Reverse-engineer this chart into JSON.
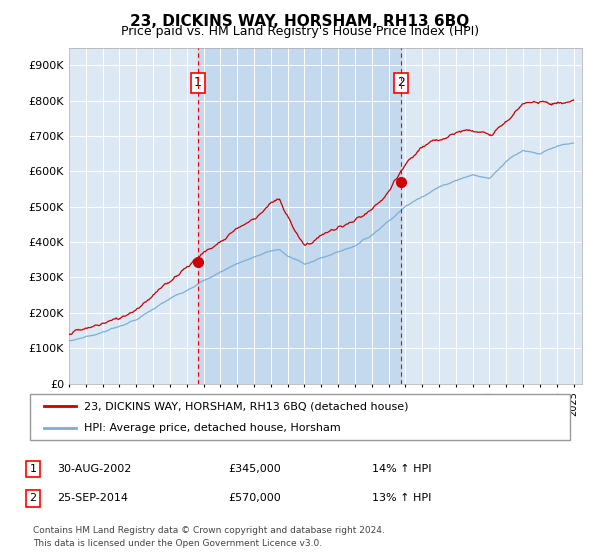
{
  "title": "23, DICKINS WAY, HORSHAM, RH13 6BQ",
  "subtitle": "Price paid vs. HM Land Registry's House Price Index (HPI)",
  "plot_bg_color": "#dce9f5",
  "fill_color": "#c5d9ee",
  "ylim": [
    0,
    950000
  ],
  "yticks": [
    0,
    100000,
    200000,
    300000,
    400000,
    500000,
    600000,
    700000,
    800000,
    900000
  ],
  "ytick_labels": [
    "£0",
    "£100K",
    "£200K",
    "£300K",
    "£400K",
    "£500K",
    "£600K",
    "£700K",
    "£800K",
    "£900K"
  ],
  "sale1": {
    "date_x": 2002.66,
    "price": 345000,
    "label": "1",
    "display_date": "30-AUG-2002",
    "display_price": "£345,000",
    "display_hpi": "14% ↑ HPI"
  },
  "sale2": {
    "date_x": 2014.73,
    "price": 570000,
    "label": "2",
    "display_date": "25-SEP-2014",
    "display_price": "£570,000",
    "display_hpi": "13% ↑ HPI"
  },
  "legend_line1": "23, DICKINS WAY, HORSHAM, RH13 6BQ (detached house)",
  "legend_line2": "HPI: Average price, detached house, Horsham",
  "line_color": "#cc0000",
  "hpi_color": "#7ab0d4",
  "footer1": "Contains HM Land Registry data © Crown copyright and database right 2024.",
  "footer2": "This data is licensed under the Open Government Licence v3.0.",
  "xmin": 1995,
  "xmax": 2025.5
}
